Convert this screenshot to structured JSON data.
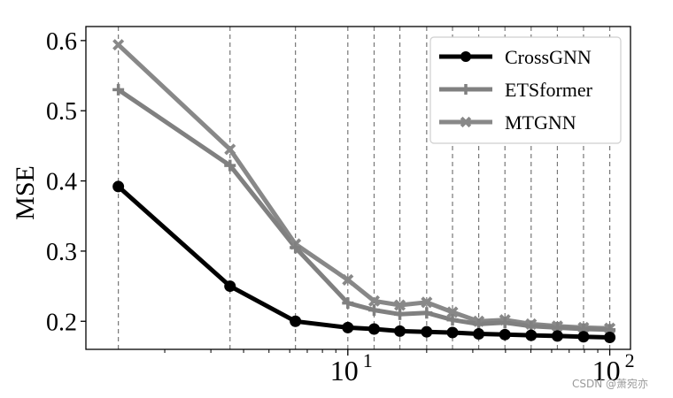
{
  "chart_data": {
    "type": "line",
    "xscale": "log",
    "xlim": [
      1.0,
      120
    ],
    "ylim": [
      0.16,
      0.62
    ],
    "ylabel": "MSE",
    "xlabel": "",
    "grid": {
      "x": "dashed-vertical",
      "y": false
    },
    "legend_position": "top-right",
    "x": [
      1.33,
      3.55,
      6.31,
      10,
      12.6,
      15.8,
      20,
      25.1,
      31.6,
      39.8,
      50.1,
      63.1,
      79.4,
      100
    ],
    "yticks": [
      0.2,
      0.3,
      0.4,
      0.5,
      0.6
    ],
    "xticks": [
      {
        "base": "10",
        "exp": "1",
        "value": 10
      },
      {
        "base": "10",
        "exp": "2",
        "value": 100
      }
    ],
    "series": [
      {
        "name": "CrossGNN",
        "color": "#000000",
        "marker": "circle",
        "values": [
          0.392,
          0.25,
          0.2,
          0.191,
          0.189,
          0.186,
          0.185,
          0.184,
          0.182,
          0.181,
          0.18,
          0.179,
          0.178,
          0.177
        ]
      },
      {
        "name": "ETSformer",
        "color": "#808080",
        "marker": "plus",
        "values": [
          0.53,
          0.422,
          0.305,
          0.226,
          0.216,
          0.21,
          0.212,
          0.202,
          0.196,
          0.198,
          0.193,
          0.191,
          0.189,
          0.188
        ]
      },
      {
        "name": "MTGNN",
        "color": "#888888",
        "marker": "x",
        "values": [
          0.594,
          0.445,
          0.31,
          0.259,
          0.229,
          0.223,
          0.227,
          0.213,
          0.2,
          0.202,
          0.196,
          0.193,
          0.191,
          0.19
        ]
      }
    ]
  },
  "watermark": "CSDN @萧宛亦"
}
